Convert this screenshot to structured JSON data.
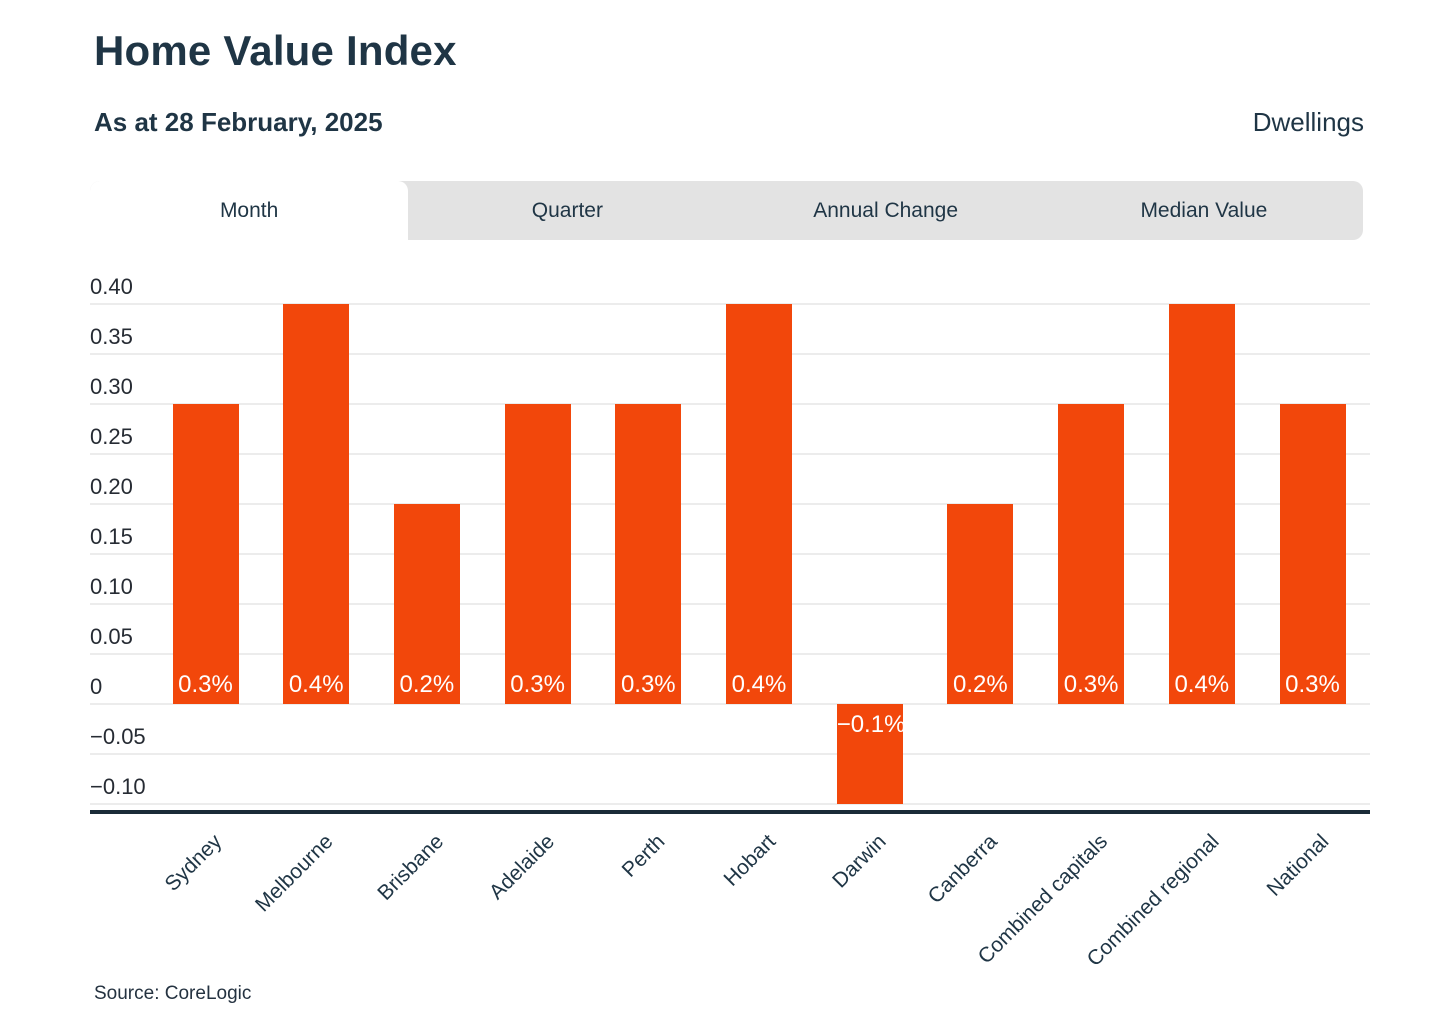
{
  "header": {
    "title": "Home Value Index",
    "subtitle": "As at 28 February, 2025",
    "segment_label": "Dwellings"
  },
  "tabs": {
    "items": [
      {
        "label": "Month",
        "active": true
      },
      {
        "label": "Quarter",
        "active": false
      },
      {
        "label": "Annual Change",
        "active": false
      },
      {
        "label": "Median Value",
        "active": false
      }
    ]
  },
  "chart_data": {
    "type": "bar",
    "title": "Home Value Index",
    "xlabel": "",
    "ylabel": "",
    "categories": [
      "Sydney",
      "Melbourne",
      "Brisbane",
      "Adelaide",
      "Perth",
      "Hobart",
      "Darwin",
      "Canberra",
      "Combined capitals",
      "Combined regional",
      "National"
    ],
    "values": [
      0.3,
      0.4,
      0.2,
      0.3,
      0.3,
      0.4,
      -0.1,
      0.2,
      0.3,
      0.4,
      0.3
    ],
    "value_labels": [
      "0.3%",
      "0.4%",
      "0.2%",
      "0.3%",
      "0.3%",
      "0.4%",
      "−0.1%",
      "0.2%",
      "0.3%",
      "0.4%",
      "0.3%"
    ],
    "yticks": [
      {
        "value": 0.4,
        "label": "0.40"
      },
      {
        "value": 0.35,
        "label": "0.35"
      },
      {
        "value": 0.3,
        "label": "0.30"
      },
      {
        "value": 0.25,
        "label": "0.25"
      },
      {
        "value": 0.2,
        "label": "0.20"
      },
      {
        "value": 0.15,
        "label": "0.15"
      },
      {
        "value": 0.1,
        "label": "0.10"
      },
      {
        "value": 0.05,
        "label": "0.05"
      },
      {
        "value": 0,
        "label": "0"
      },
      {
        "value": -0.05,
        "label": "−0.05"
      },
      {
        "value": -0.1,
        "label": "−0.10"
      }
    ],
    "ylim": [
      -0.1,
      0.4
    ],
    "grid": true,
    "legend": false,
    "bar_color": "#F2470B",
    "x_labels_rotation_deg": 45
  },
  "footer": {
    "source": "Source: CoreLogic"
  },
  "colors": {
    "ink": "#1F3545",
    "bar": "#F2470B",
    "tab_bar_bg": "#E3E3E3",
    "gridline": "#ECECEC",
    "axis_line": "#1A2B38",
    "background": "#FFFFFF"
  }
}
